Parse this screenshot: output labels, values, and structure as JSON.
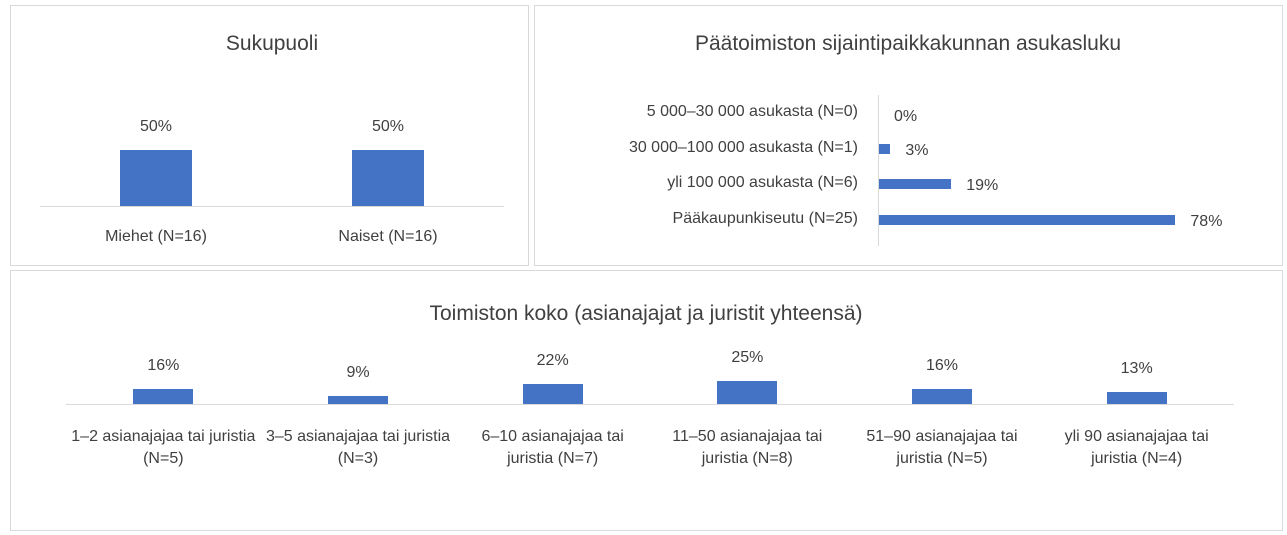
{
  "chart_data": [
    {
      "type": "bar",
      "title": "Sukupuoli",
      "categories": [
        "Miehet (N=16)",
        "Naiset (N=16)"
      ],
      "values": [
        50,
        50
      ],
      "value_labels": [
        "50%",
        "50%"
      ],
      "color": "#4472c4"
    },
    {
      "type": "bar",
      "orientation": "horizontal",
      "title": "Päätoimiston sijaintipaikkakunnan asukasluku",
      "categories": [
        "5 000–30 000 asukasta (N=0)",
        "30 000–100 000 asukasta (N=1)",
        "yli 100 000 asukasta (N=6)",
        "Pääkaupunkiseutu (N=25)"
      ],
      "values": [
        0,
        3,
        19,
        78
      ],
      "value_labels": [
        "0%",
        "3%",
        "19%",
        "78%"
      ],
      "color": "#4472c4"
    },
    {
      "type": "bar",
      "title": "Toimiston koko (asianajajat ja juristit yhteensä)",
      "categories": [
        "1–2 asianajajaa tai juristia (N=5)",
        "3–5 asianajajaa tai juristia (N=3)",
        "6–10 asianajajaa tai juristia (N=7)",
        "11–50 asianajajaa tai juristia (N=8)",
        "51–90 asianajajaa tai juristia (N=5)",
        "yli 90 asianajajaa tai juristia (N=4)"
      ],
      "values": [
        16,
        9,
        22,
        25,
        16,
        13
      ],
      "value_labels": [
        "16%",
        "9%",
        "22%",
        "25%",
        "16%",
        "13%"
      ],
      "color": "#4472c4"
    }
  ]
}
